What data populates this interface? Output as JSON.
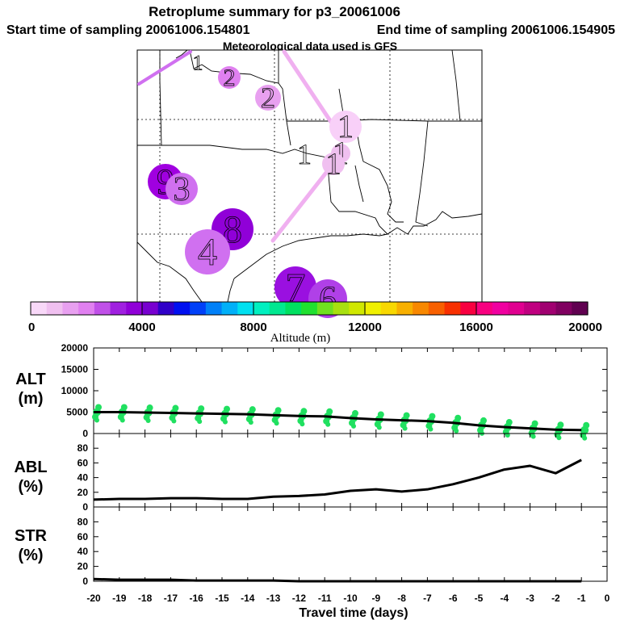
{
  "header": {
    "title": "Retroplume summary for p3_20061006",
    "start": "Start time of sampling 20061006.154801",
    "end": "End time of sampling 20061006.154905",
    "met": "Meteorological data used is GFS"
  },
  "map": {
    "markers": [
      {
        "label": "1",
        "color": "#f0c0f0"
      },
      {
        "label": "2",
        "color": "#e080f0"
      },
      {
        "label": "2",
        "color": "#e8a0f0"
      },
      {
        "label": "1",
        "color": "#f8d0f8"
      },
      {
        "label": "1",
        "color": "#f0c0f0"
      },
      {
        "label": "1",
        "color": "#f0c0f0"
      },
      {
        "label": "1",
        "color": "#f0c0f0"
      },
      {
        "label": "9",
        "color": "#a000e0"
      },
      {
        "label": "3",
        "color": "#d070f0"
      },
      {
        "label": "8",
        "color": "#9000d8"
      },
      {
        "label": "4",
        "color": "#d070f0"
      },
      {
        "label": "7",
        "color": "#9a10e0"
      },
      {
        "label": "6",
        "color": "#b040e8"
      }
    ]
  },
  "colorbar": {
    "ticks": [
      "0",
      "4000",
      "8000",
      "12000",
      "16000",
      "20000"
    ],
    "label": "Altitude (m)",
    "colors": [
      "#f8d8f8",
      "#f0c0f0",
      "#e8a0f0",
      "#e080f0",
      "#c050e8",
      "#a020e0",
      "#9000d8",
      "#7800d0",
      "#3000c8",
      "#0010f0",
      "#0040f8",
      "#0080f8",
      "#00b0f8",
      "#00e0f0",
      "#00f0c0",
      "#00e890",
      "#00e060",
      "#20e030",
      "#70e020",
      "#a8e010",
      "#d0e800",
      "#f0f000",
      "#f8d800",
      "#f8b000",
      "#f88800",
      "#f86000",
      "#f83000",
      "#f80040",
      "#f80080",
      "#f000a0",
      "#e00090",
      "#c00080",
      "#a00070",
      "#800060",
      "#600050"
    ]
  },
  "panels": {
    "alt": {
      "label1": "ALT",
      "label2": "(m)"
    },
    "abl": {
      "label1": "ABL",
      "label2": "(%)"
    },
    "str": {
      "label1": "STR",
      "label2": "(%)"
    },
    "xlabel": "Travel time (days)"
  },
  "chart_data": [
    {
      "type": "line",
      "title": "ALT",
      "ylabel": "ALT (m)",
      "xlabel": "Travel time (days)",
      "ylim": [
        0,
        20000
      ],
      "yticks": [
        "0",
        "5000",
        "10000",
        "15000",
        "20000"
      ],
      "x": [
        -20,
        -19,
        -18,
        -17,
        -16,
        -15,
        -14,
        -13,
        -12,
        -11,
        -10,
        -9,
        -8,
        -7,
        -6,
        -5,
        -4,
        -3,
        -2,
        -1
      ],
      "values": [
        5000,
        5000,
        4900,
        4800,
        4700,
        4600,
        4500,
        4300,
        4100,
        4000,
        3600,
        3300,
        3100,
        2900,
        2500,
        1900,
        1500,
        1200,
        900,
        800
      ],
      "scatter_color": "#20e060"
    },
    {
      "type": "line",
      "title": "ABL",
      "ylabel": "ABL (%)",
      "ylim": [
        0,
        100
      ],
      "yticks": [
        "0",
        "20",
        "40",
        "60",
        "80"
      ],
      "x": [
        -20,
        -19,
        -18,
        -17,
        -16,
        -15,
        -14,
        -13,
        -12,
        -11,
        -10,
        -9,
        -8,
        -7,
        -6,
        -5,
        -4,
        -3,
        -2,
        -1
      ],
      "values": [
        10,
        11,
        11,
        12,
        12,
        11,
        11,
        14,
        15,
        17,
        22,
        24,
        21,
        24,
        31,
        40,
        51,
        56,
        46,
        64
      ]
    },
    {
      "type": "line",
      "title": "STR",
      "ylabel": "STR (%)",
      "xlabel": "Travel time (days)",
      "ylim": [
        0,
        100
      ],
      "yticks": [
        "0",
        "20",
        "40",
        "60",
        "80"
      ],
      "xticks": [
        "-20",
        "-19",
        "-18",
        "-17",
        "-16",
        "-15",
        "-14",
        "-13",
        "-12",
        "-11",
        "-10",
        "-9",
        "-8",
        "-7",
        "-6",
        "-5",
        "-4",
        "-3",
        "-2",
        "-1",
        "0"
      ],
      "x": [
        -20,
        -19,
        -18,
        -17,
        -16,
        -15,
        -14,
        -13,
        -12,
        -11,
        -10,
        -9,
        -8,
        -7,
        -6,
        -5,
        -4,
        -3,
        -2,
        -1
      ],
      "values": [
        3,
        2,
        2,
        2,
        1,
        1,
        1,
        1,
        0,
        0,
        0,
        0,
        0,
        0,
        0,
        0,
        0,
        0,
        0,
        0
      ]
    }
  ]
}
